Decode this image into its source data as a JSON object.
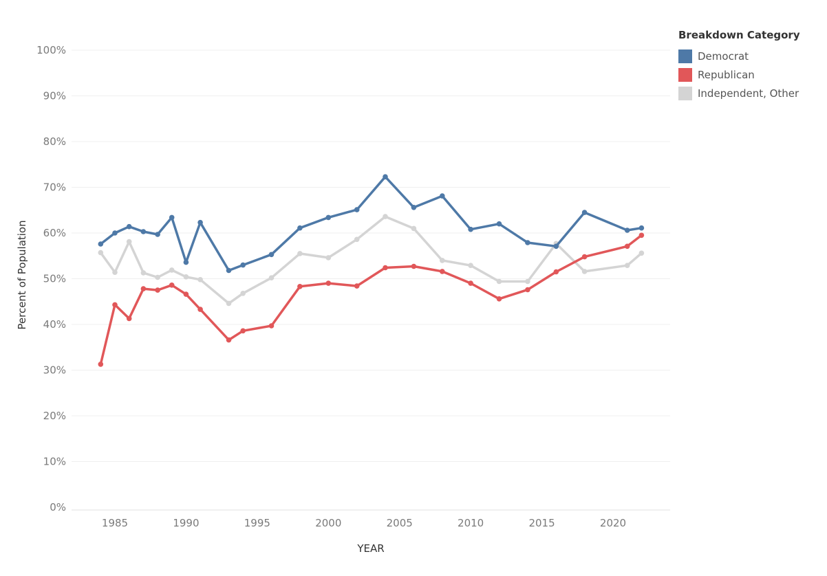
{
  "chart_data": {
    "type": "line",
    "title": "",
    "xlabel": "YEAR",
    "ylabel": "Percent of Population",
    "xlim": [
      1982,
      2024
    ],
    "ylim": [
      0,
      100
    ],
    "x_ticks": [
      1985,
      1990,
      1995,
      2000,
      2005,
      2010,
      2015,
      2020
    ],
    "y_ticks": [
      {
        "value": 0,
        "label": "0%"
      },
      {
        "value": 10,
        "label": "10%"
      },
      {
        "value": 20,
        "label": "20%"
      },
      {
        "value": 30,
        "label": "30%"
      },
      {
        "value": 40,
        "label": "40%"
      },
      {
        "value": 50,
        "label": "50%"
      },
      {
        "value": 60,
        "label": "60%"
      },
      {
        "value": 70,
        "label": "70%"
      },
      {
        "value": 80,
        "label": "80%"
      },
      {
        "value": 90,
        "label": "90%"
      },
      {
        "value": 100,
        "label": "100%"
      }
    ],
    "grid": true,
    "legend": {
      "title": "Breakdown Category",
      "position": "top-right"
    },
    "series": [
      {
        "name": "Democrat",
        "color": "#4e79a7",
        "points": [
          [
            1984,
            57.6
          ],
          [
            1985,
            60.0
          ],
          [
            1986,
            61.4
          ],
          [
            1987,
            60.3
          ],
          [
            1988,
            59.7
          ],
          [
            1989,
            63.4
          ],
          [
            1990,
            53.6
          ],
          [
            1991,
            62.3
          ],
          [
            1993,
            51.8
          ],
          [
            1994,
            53.0
          ],
          [
            1996,
            55.3
          ],
          [
            1998,
            61.1
          ],
          [
            2000,
            63.4
          ],
          [
            2002,
            65.1
          ],
          [
            2004,
            72.3
          ],
          [
            2006,
            65.6
          ],
          [
            2008,
            68.1
          ],
          [
            2010,
            60.8
          ],
          [
            2012,
            62.0
          ],
          [
            2014,
            57.9
          ],
          [
            2016,
            57.1
          ],
          [
            2018,
            64.5
          ],
          [
            2021,
            60.6
          ],
          [
            2022,
            61.1
          ]
        ]
      },
      {
        "name": "Republican",
        "color": "#e15759",
        "points": [
          [
            1984,
            31.3
          ],
          [
            1985,
            44.3
          ],
          [
            1986,
            41.3
          ],
          [
            1987,
            47.8
          ],
          [
            1988,
            47.5
          ],
          [
            1989,
            48.6
          ],
          [
            1990,
            46.6
          ],
          [
            1991,
            43.3
          ],
          [
            1993,
            36.6
          ],
          [
            1994,
            38.6
          ],
          [
            1996,
            39.7
          ],
          [
            1998,
            48.3
          ],
          [
            2000,
            49.0
          ],
          [
            2002,
            48.4
          ],
          [
            2004,
            52.4
          ],
          [
            2006,
            52.7
          ],
          [
            2008,
            51.6
          ],
          [
            2010,
            49.0
          ],
          [
            2012,
            45.6
          ],
          [
            2014,
            47.6
          ],
          [
            2016,
            51.5
          ],
          [
            2018,
            54.8
          ],
          [
            2021,
            57.1
          ],
          [
            2022,
            59.5
          ]
        ]
      },
      {
        "name": "Independent, Other",
        "color": "#d4d4d4",
        "points": [
          [
            1984,
            55.7
          ],
          [
            1985,
            51.4
          ],
          [
            1986,
            58.1
          ],
          [
            1987,
            51.3
          ],
          [
            1988,
            50.3
          ],
          [
            1989,
            51.9
          ],
          [
            1990,
            50.4
          ],
          [
            1991,
            49.8
          ],
          [
            1993,
            44.6
          ],
          [
            1994,
            46.8
          ],
          [
            1996,
            50.2
          ],
          [
            1998,
            55.5
          ],
          [
            2000,
            54.6
          ],
          [
            2002,
            58.6
          ],
          [
            2004,
            63.6
          ],
          [
            2006,
            61.0
          ],
          [
            2008,
            54.0
          ],
          [
            2010,
            52.9
          ],
          [
            2012,
            49.4
          ],
          [
            2014,
            49.4
          ],
          [
            2016,
            57.7
          ],
          [
            2018,
            51.6
          ],
          [
            2021,
            52.9
          ],
          [
            2022,
            55.6
          ]
        ]
      }
    ]
  }
}
